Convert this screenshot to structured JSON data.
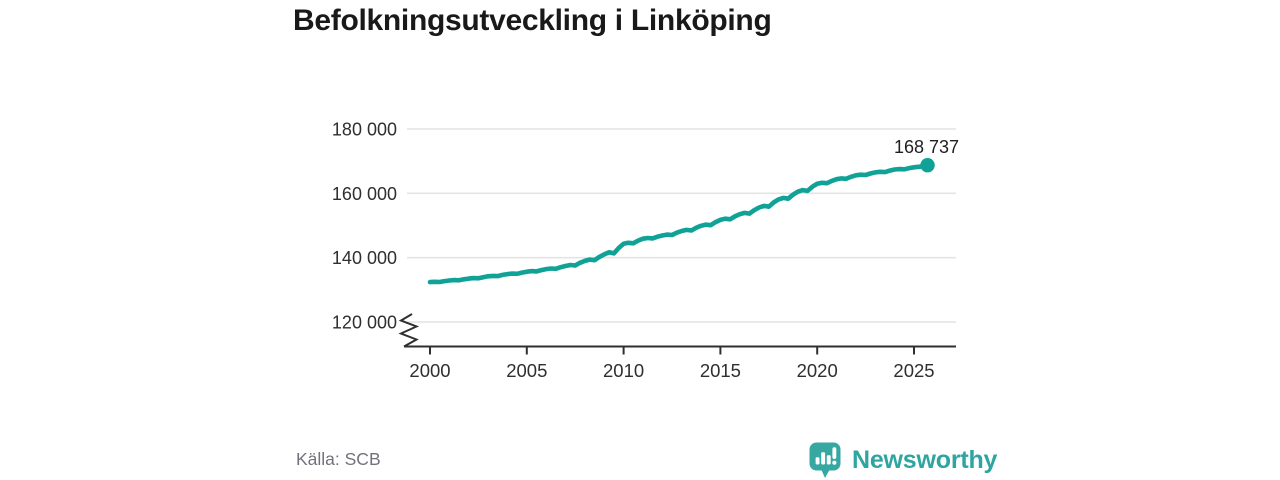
{
  "header": {
    "title": "Befolkningsutveckling i Linköping"
  },
  "chart_data": {
    "type": "line",
    "title": "Befolkningsutveckling i Linköping",
    "xlabel": "",
    "ylabel": "",
    "grid": "horizontal",
    "axis_break": true,
    "xlim": [
      1998.7,
      2027.2
    ],
    "ylim": [
      120000,
      185000
    ],
    "x_ticks": [
      {
        "value": 2000,
        "label": "2000"
      },
      {
        "value": 2005,
        "label": "2005"
      },
      {
        "value": 2010,
        "label": "2010"
      },
      {
        "value": 2015,
        "label": "2015"
      },
      {
        "value": 2020,
        "label": "2020"
      },
      {
        "value": 2025,
        "label": "2025"
      }
    ],
    "y_ticks": [
      {
        "value": 120000,
        "label": "120 000"
      },
      {
        "value": 140000,
        "label": "140 000"
      },
      {
        "value": 160000,
        "label": "160 000"
      },
      {
        "value": 180000,
        "label": "180 000"
      }
    ],
    "series": [
      {
        "color": "#10a296",
        "line_width": 4.6,
        "years": [
          2000,
          2001,
          2002,
          2003,
          2004,
          2005,
          2006,
          2007,
          2008,
          2009,
          2010,
          2011,
          2012,
          2013,
          2014,
          2015,
          2016,
          2017,
          2018,
          2019,
          2020,
          2021,
          2022,
          2023,
          2024,
          2025
        ],
        "values": [
          132400,
          132900,
          133500,
          134200,
          134900,
          135650,
          136450,
          137400,
          139000,
          141000,
          144300,
          145900,
          146900,
          148300,
          149900,
          151750,
          153500,
          155600,
          158100,
          160500,
          163000,
          164400,
          165600,
          166500,
          167400,
          168100
        ],
        "final_point": {
          "x": 2025.7,
          "value": 168737,
          "label": "168 737"
        }
      }
    ],
    "seasonal_pattern": [
      0,
      0.2,
      0.1,
      0.62
    ],
    "colors": {
      "grid": "#e4e4e4",
      "axis": "#2f2f2f",
      "tick_text": "#2f2f2f",
      "annotation_text": "#1f1f1f"
    }
  },
  "footer": {
    "source": "Källa: SCB",
    "logo_text": "Newsworthy",
    "logo_color": "#2ea5a0"
  }
}
